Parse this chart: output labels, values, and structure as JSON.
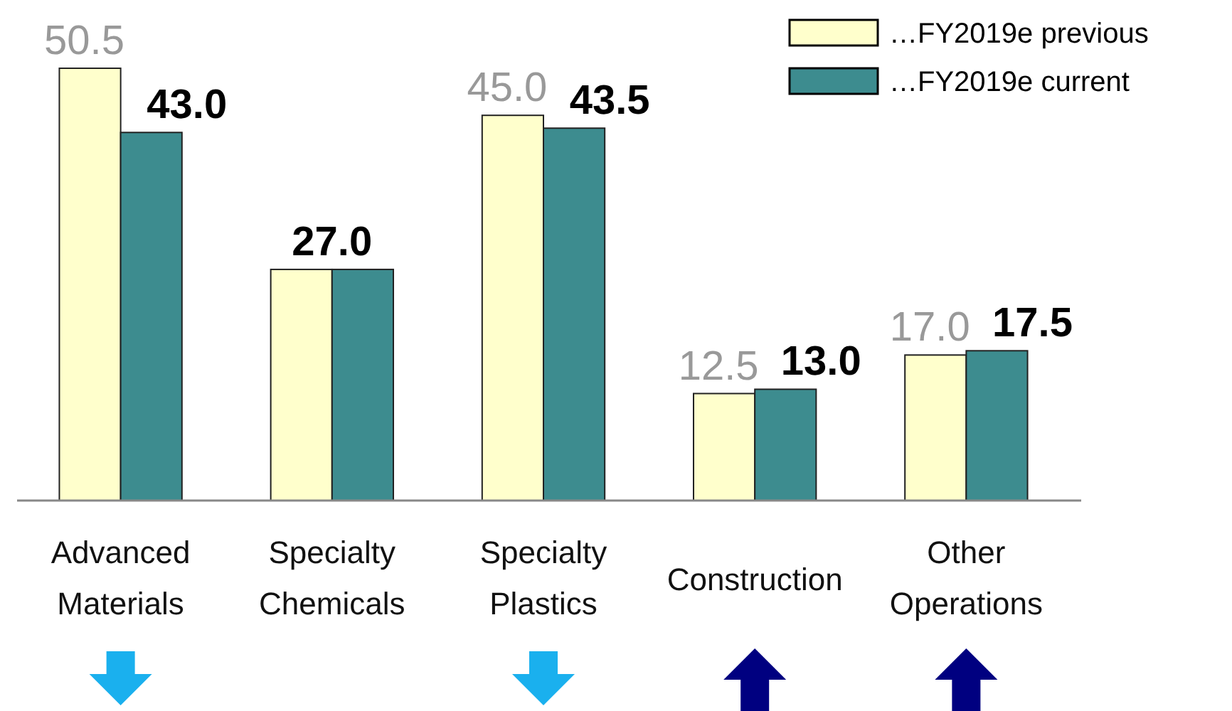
{
  "chart_data": {
    "type": "bar",
    "categories": [
      "Advanced\nMaterials",
      "Specialty\nChemicals",
      "Specialty\nPlastics",
      "Construction",
      "Other\nOperations"
    ],
    "series": [
      {
        "name": "…FY2019e previous",
        "color": "#ffffcc",
        "values": [
          50.5,
          27.0,
          45.0,
          12.5,
          17.0
        ],
        "value_labels": [
          "50.5",
          null,
          "45.0",
          "12.5",
          "17.0"
        ]
      },
      {
        "name": "…FY2019e current",
        "color": "#3d8c8f",
        "values": [
          43.0,
          27.0,
          43.5,
          13.0,
          17.5
        ],
        "value_labels": [
          "43.0",
          "27.0",
          "43.5",
          "13.0",
          "17.5"
        ]
      }
    ],
    "legend": "top right"
  }
}
